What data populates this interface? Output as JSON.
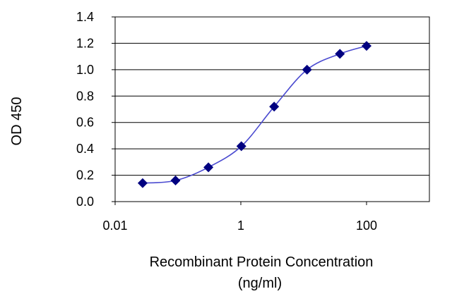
{
  "chart_data": {
    "type": "scatter",
    "title": "",
    "xlabel_line1": "Recombinant Protein Concentration",
    "xlabel_line2": "(ng/ml)",
    "ylabel": "OD 450",
    "x_scale": "log",
    "xlim": [
      0.01,
      1000
    ],
    "ylim": [
      0.0,
      1.4
    ],
    "x_ticks": [
      "0.01",
      "1",
      "100"
    ],
    "x_tick_values": [
      0.01,
      1,
      100
    ],
    "y_ticks": [
      "0.0",
      "0.2",
      "0.4",
      "0.6",
      "0.8",
      "1.0",
      "1.2",
      "1.4"
    ],
    "y_tick_values": [
      0.0,
      0.2,
      0.4,
      0.6,
      0.8,
      1.0,
      1.2,
      1.4
    ],
    "grid": "horizontal",
    "series": [
      {
        "x": [
          0.0274,
          0.0914,
          0.305,
          1.02,
          3.39,
          11.3,
          37.7,
          100
        ],
        "y": [
          0.14,
          0.16,
          0.26,
          0.42,
          0.72,
          1.0,
          1.12,
          1.18
        ]
      }
    ],
    "colors": {
      "series": "#000080",
      "curve": "#4a4ad0",
      "grid": "#000000",
      "frame": "#000000"
    }
  }
}
